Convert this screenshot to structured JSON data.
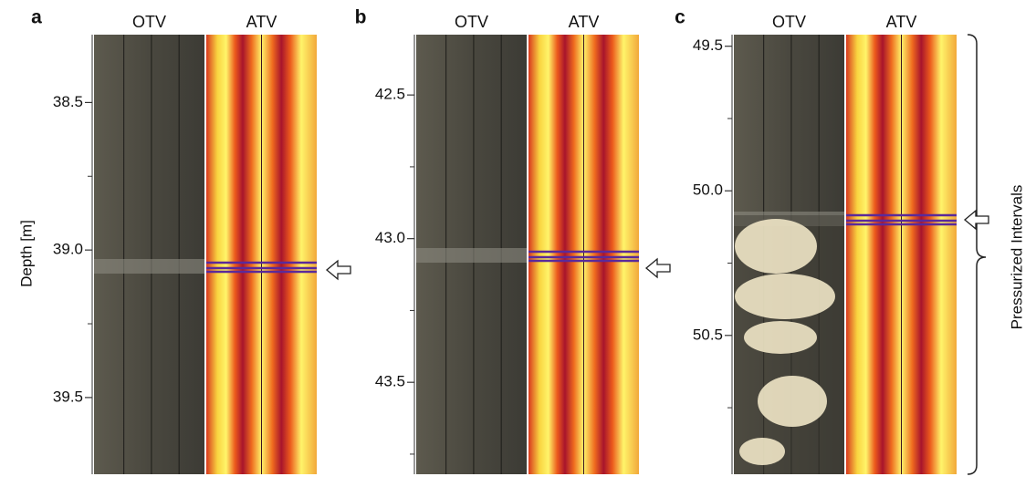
{
  "axis_label": "Depth [m]",
  "annotation": "Pressurized Intervals",
  "panels": [
    {
      "label": "a",
      "columns": [
        "OTV",
        "ATV"
      ],
      "ylim": [
        38.27,
        39.76
      ],
      "yticks": [
        38.5,
        {
          "value": 39,
          "label": "39.0"
        },
        39.5
      ],
      "minor_ticks": [
        38.75,
        39.25
      ]
    },
    {
      "label": "b",
      "columns": [
        "OTV",
        "ATV"
      ],
      "ylim": [
        42.29,
        43.82
      ],
      "yticks": [
        42.5,
        {
          "value": 43,
          "label": "43.0"
        },
        43.5
      ],
      "minor_ticks": [
        42.75,
        43.25,
        43.75
      ]
    },
    {
      "label": "c",
      "columns": [
        "OTV",
        "ATV"
      ],
      "ylim": [
        49.46,
        50.98
      ],
      "yticks": [
        49.5,
        {
          "value": 50,
          "label": "50.0"
        },
        50.5
      ],
      "minor_ticks": [
        49.75,
        50.25,
        50.75
      ]
    }
  ]
}
